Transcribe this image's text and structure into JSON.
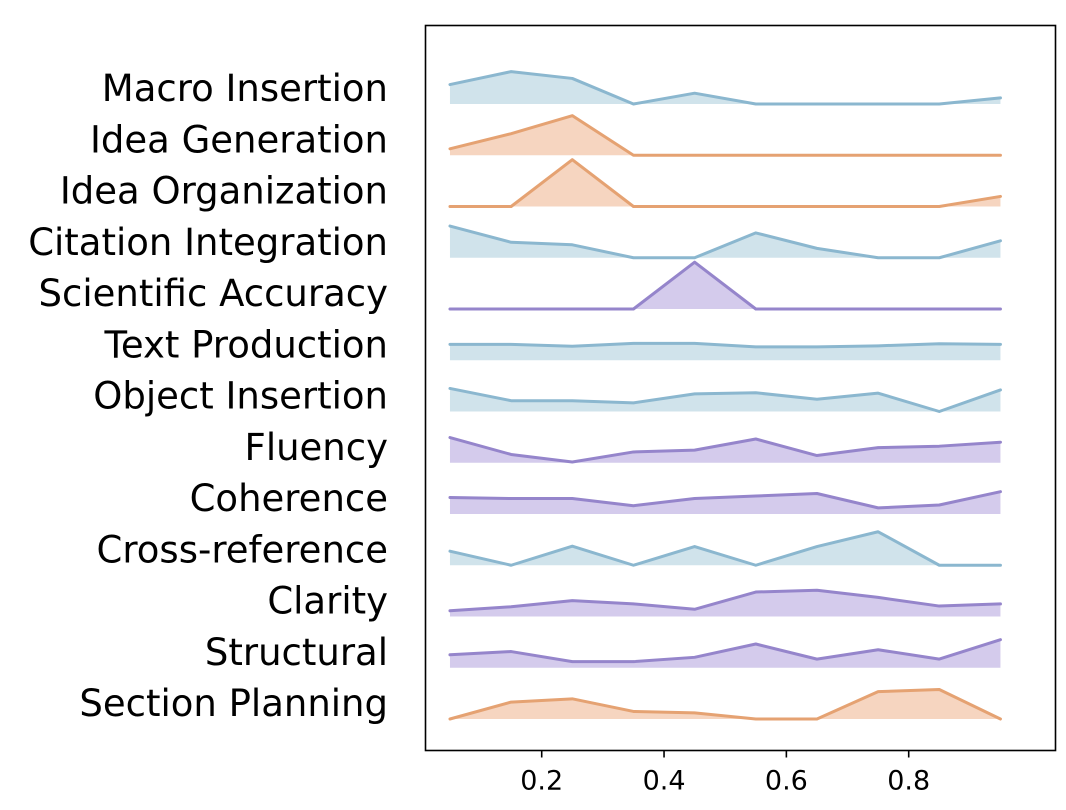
{
  "chart_data": {
    "type": "area",
    "x": [
      0.05,
      0.15,
      0.25,
      0.35,
      0.45,
      0.55,
      0.65,
      0.75,
      0.85,
      0.95
    ],
    "xlim": [
      0.01,
      1.04
    ],
    "xticks": [
      "0.2",
      "0.4",
      "0.6",
      "0.8"
    ],
    "xtick_values": [
      0.2,
      0.4,
      0.6,
      0.8
    ],
    "grid": false,
    "colors": {
      "blue": {
        "line": "#8bb7cf",
        "fill": "#d0e3eb"
      },
      "orange": {
        "line": "#e5a272",
        "fill": "#f6d5c0"
      },
      "purple": {
        "line": "#9585cb",
        "fill": "#d4cbec"
      }
    },
    "series": [
      {
        "label": "Macro Insertion",
        "color": "blue",
        "values": [
          0.54,
          0.9,
          0.71,
          0.0,
          0.3,
          0.0,
          0.0,
          0.0,
          0.0,
          0.17
        ]
      },
      {
        "label": "Idea Generation",
        "color": "orange",
        "values": [
          0.18,
          0.6,
          1.1,
          0.0,
          0.0,
          0.0,
          0.0,
          0.0,
          0.0,
          0.0
        ]
      },
      {
        "label": "Idea Organization",
        "color": "orange",
        "values": [
          0.0,
          0.0,
          1.3,
          0.0,
          0.0,
          0.0,
          0.0,
          0.0,
          0.0,
          0.28
        ]
      },
      {
        "label": "Citation Integration",
        "color": "blue",
        "values": [
          0.88,
          0.43,
          0.36,
          0.0,
          0.0,
          0.69,
          0.26,
          0.0,
          0.0,
          0.47
        ]
      },
      {
        "label": "Scientific Accuracy",
        "color": "purple",
        "values": [
          0.0,
          0.0,
          0.0,
          0.0,
          1.3,
          0.0,
          0.0,
          0.0,
          0.0,
          0.0
        ]
      },
      {
        "label": "Text Production",
        "color": "blue",
        "values": [
          0.44,
          0.44,
          0.39,
          0.47,
          0.47,
          0.37,
          0.37,
          0.4,
          0.46,
          0.44
        ]
      },
      {
        "label": "Object Insertion",
        "color": "blue",
        "values": [
          0.64,
          0.3,
          0.3,
          0.24,
          0.49,
          0.52,
          0.34,
          0.51,
          0.0,
          0.6
        ]
      },
      {
        "label": "Fluency",
        "color": "purple",
        "values": [
          0.7,
          0.23,
          0.02,
          0.3,
          0.35,
          0.66,
          0.2,
          0.42,
          0.46,
          0.57
        ]
      },
      {
        "label": "Coherence",
        "color": "purple",
        "values": [
          0.46,
          0.43,
          0.43,
          0.23,
          0.43,
          0.5,
          0.57,
          0.17,
          0.25,
          0.62
        ]
      },
      {
        "label": "Cross-reference",
        "color": "blue",
        "values": [
          0.39,
          0.0,
          0.53,
          0.0,
          0.52,
          0.0,
          0.52,
          0.93,
          0.0,
          0.0
        ]
      },
      {
        "label": "Clarity",
        "color": "purple",
        "values": [
          0.16,
          0.27,
          0.44,
          0.35,
          0.2,
          0.68,
          0.73,
          0.53,
          0.29,
          0.35
        ]
      },
      {
        "label": "Structural",
        "color": "purple",
        "values": [
          0.36,
          0.45,
          0.17,
          0.17,
          0.29,
          0.66,
          0.24,
          0.5,
          0.24,
          0.78
        ]
      },
      {
        "label": "Section Planning",
        "color": "orange",
        "values": [
          0.0,
          0.47,
          0.56,
          0.21,
          0.17,
          0.0,
          0.0,
          0.76,
          0.82,
          0.0
        ]
      }
    ]
  }
}
